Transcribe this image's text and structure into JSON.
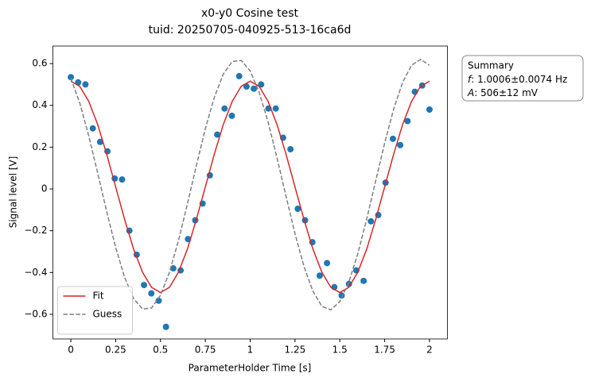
{
  "chart_data": {
    "type": "line",
    "title": "x0-y0 Cosine test",
    "subtitle": "tuid: 20250705-040925-513-16ca6d",
    "x_label": "ParameterHolder Time [s]",
    "y_label": "Signal level [V]",
    "xlim": [
      -0.1,
      2.1
    ],
    "ylim": [
      -0.718,
      0.684
    ],
    "xticks": [
      0,
      0.25,
      0.5,
      0.75,
      1,
      1.25,
      1.5,
      1.75,
      2
    ],
    "yticks": [
      {
        "value": -0.6,
        "label": "−0.6"
      },
      {
        "value": -0.4,
        "label": "−0.4"
      },
      {
        "value": -0.2,
        "label": "−0.2"
      },
      0,
      0.2,
      0.4,
      0.6
    ],
    "legend": "lower left",
    "series": [
      {
        "type": "scatter",
        "color": "#1f77b4",
        "x": [
          0,
          0.0408,
          0.0816,
          0.1224,
          0.1633,
          0.2041,
          0.2449,
          0.2857,
          0.3265,
          0.3673,
          0.4082,
          0.449,
          0.4898,
          0.5306,
          0.5714,
          0.6122,
          0.6531,
          0.6939,
          0.7347,
          0.7755,
          0.8163,
          0.8571,
          0.898,
          0.9388,
          0.9796,
          1.0204,
          1.0612,
          1.102,
          1.1429,
          1.1837,
          1.2245,
          1.2653,
          1.3061,
          1.3469,
          1.3878,
          1.4286,
          1.4694,
          1.5102,
          1.551,
          1.5918,
          1.6327,
          1.6735,
          1.7143,
          1.7551,
          1.7959,
          1.8367,
          1.8776,
          1.9184,
          1.9592,
          2
        ],
        "values": [
          0.535,
          0.51,
          0.5,
          0.29,
          0.225,
          0.18,
          0.05,
          0.045,
          -0.2,
          -0.315,
          -0.46,
          -0.5,
          -0.535,
          -0.66,
          -0.38,
          -0.39,
          -0.24,
          -0.15,
          -0.07,
          0.065,
          0.26,
          0.385,
          0.35,
          0.54,
          0.49,
          0.48,
          0.5,
          0.385,
          0.385,
          0.245,
          0.19,
          -0.095,
          -0.15,
          -0.255,
          -0.415,
          -0.355,
          -0.47,
          -0.51,
          -0.455,
          -0.39,
          -0.44,
          -0.155,
          -0.125,
          0.03,
          0.24,
          0.21,
          0.325,
          0.465,
          0.495,
          0.38
        ]
      },
      {
        "type": "line",
        "name": "Fit",
        "color": "#d62728",
        "dash": false,
        "x": [
          0,
          0.05,
          0.1,
          0.15,
          0.2,
          0.25,
          0.3,
          0.35,
          0.4,
          0.45,
          0.5,
          0.55,
          0.6,
          0.65,
          0.7,
          0.75,
          0.8,
          0.85,
          0.9,
          0.95,
          1,
          1.05,
          1.1,
          1.15,
          1.2,
          1.25,
          1.3,
          1.35,
          1.4,
          1.45,
          1.5,
          1.55,
          1.6,
          1.65,
          1.7,
          1.75,
          1.8,
          1.85,
          1.9,
          1.95,
          2
        ],
        "values": [
          0.516,
          0.491,
          0.419,
          0.308,
          0.166,
          0.01,
          -0.146,
          -0.288,
          -0.399,
          -0.471,
          -0.496,
          -0.471,
          -0.399,
          -0.288,
          -0.146,
          0.01,
          0.166,
          0.308,
          0.419,
          0.491,
          0.516,
          0.491,
          0.419,
          0.308,
          0.166,
          0.01,
          -0.146,
          -0.288,
          -0.399,
          -0.471,
          -0.496,
          -0.471,
          -0.399,
          -0.288,
          -0.146,
          0.01,
          0.166,
          0.308,
          0.419,
          0.491,
          0.516
        ]
      },
      {
        "type": "line",
        "name": "Guess",
        "color": "#7f7f7f",
        "dash": true,
        "x": [
          0,
          0.05,
          0.1,
          0.15,
          0.2,
          0.25,
          0.3,
          0.35,
          0.4,
          0.45,
          0.5,
          0.55,
          0.6,
          0.65,
          0.7,
          0.75,
          0.8,
          0.85,
          0.9,
          0.95,
          1,
          1.05,
          1.1,
          1.15,
          1.2,
          1.25,
          1.3,
          1.35,
          1.4,
          1.45,
          1.5,
          1.55,
          1.6,
          1.65,
          1.7,
          1.75,
          1.8,
          1.85,
          1.9,
          1.95,
          2
        ],
        "values": [
          0.53,
          0.411,
          0.254,
          0.075,
          -0.108,
          -0.28,
          -0.423,
          -0.525,
          -0.575,
          -0.57,
          -0.509,
          -0.398,
          -0.248,
          -0.072,
          0.112,
          0.288,
          0.438,
          0.549,
          0.61,
          0.615,
          0.565,
          0.463,
          0.32,
          0.148,
          -0.035,
          -0.214,
          -0.371,
          -0.49,
          -0.562,
          -0.579,
          -0.539,
          -0.447,
          -0.311,
          -0.144,
          0.039,
          0.219,
          0.382,
          0.51,
          0.592,
          0.62,
          0.592
        ]
      }
    ],
    "annotation": {
      "heading": "Summary",
      "lines": [
        {
          "symbol": "f",
          "text": ": 1.0006±0.0074 Hz"
        },
        {
          "symbol": "A",
          "text": ": 506±12 mV"
        }
      ]
    }
  }
}
